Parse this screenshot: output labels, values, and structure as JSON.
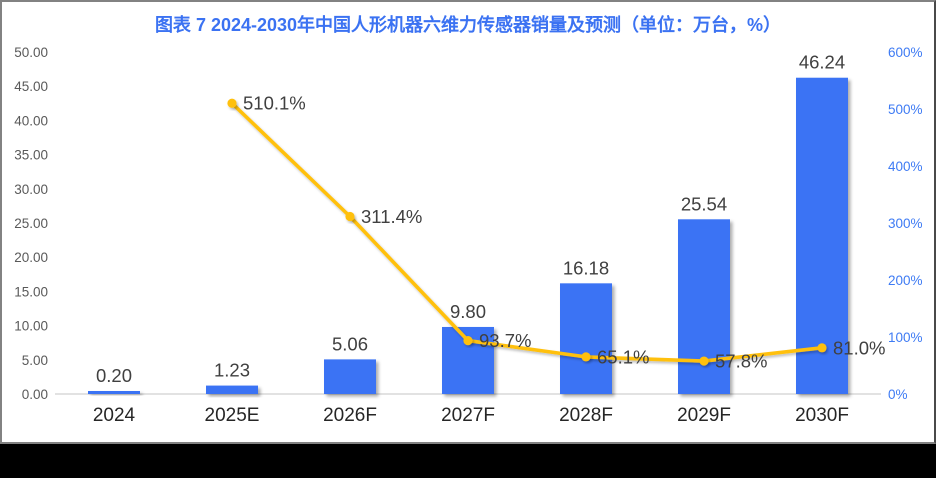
{
  "page": {
    "background": "#000000",
    "panel_background": "#ffffff",
    "panel_border": "#828282"
  },
  "chart_data": {
    "type": "bar+line",
    "title": "图表 7 2024-2030年中国人形机器六维力传感器销量及预测（单位：万台，%）",
    "title_color": "#3B72F2",
    "categories": [
      "2024",
      "2025E",
      "2026F",
      "2027F",
      "2028F",
      "2029F",
      "2030F"
    ],
    "bar_series": {
      "axis": "left",
      "values": [
        0.2,
        1.23,
        5.06,
        9.8,
        16.18,
        25.54,
        46.24
      ],
      "data_labels": [
        "0.20",
        "1.23",
        "5.06",
        "9.80",
        "16.18",
        "25.54",
        "46.24"
      ],
      "color": "#3B73F4",
      "label_color": "#404040"
    },
    "line_series": {
      "axis": "right",
      "values": [
        null,
        510.1,
        311.4,
        93.7,
        65.1,
        57.8,
        81.0
      ],
      "data_labels": [
        "",
        "510.1%",
        "311.4%",
        "93.7%",
        "65.1%",
        "57.8%",
        "81.0%"
      ],
      "color": "#FFC010",
      "label_color": "#404040"
    },
    "left_axis": {
      "min": 0,
      "max": 50,
      "step": 5,
      "tick_labels": [
        "0.00",
        "5.00",
        "10.00",
        "15.00",
        "20.00",
        "25.00",
        "30.00",
        "35.00",
        "40.00",
        "45.00",
        "50.00"
      ],
      "color": "#595959"
    },
    "right_axis": {
      "min": 0,
      "max": 600,
      "step": 100,
      "tick_labels": [
        "0%",
        "100%",
        "200%",
        "300%",
        "400%",
        "500%",
        "600%"
      ],
      "color": "#3E7BF4"
    },
    "x_axis": {
      "label_color": "#262626",
      "line_color": "#D9D9D9"
    },
    "grid": false,
    "legend_position": "none"
  }
}
